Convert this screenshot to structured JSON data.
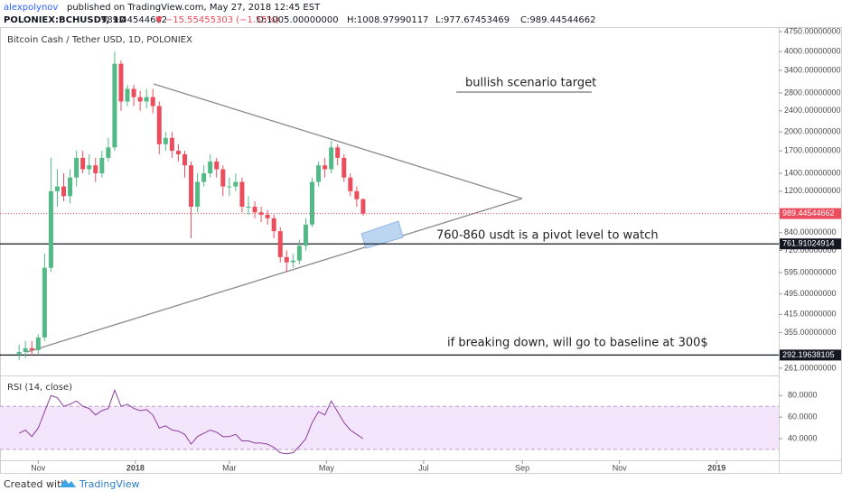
{
  "header": {
    "author": "alexpolynov",
    "published": "published on TradingView.com, May 27, 2018 12:45 EST",
    "symbol": "POLONIEX:BCHUSDT, 1D",
    "last": "989.44544662",
    "change": "▼ −15.55455303 (−1.55%)",
    "ohlc": [
      "O:1005.00000000",
      "H:1008.97990117",
      "L:977.67453469",
      "C:989.44544662"
    ]
  },
  "chart_data": {
    "type": "candlestick",
    "title": "Bitcoin Cash / Tether USD, 1D, POLONIEX",
    "log_scale": true,
    "up_color": "#53b987",
    "down_color": "#eb4d5c",
    "x": [
      "2017-10-20",
      "2017-10-24",
      "2017-10-28",
      "2017-11-01",
      "2017-11-05",
      "2017-11-09",
      "2017-11-13",
      "2017-11-17",
      "2017-11-21",
      "2017-11-25",
      "2017-11-29",
      "2017-12-03",
      "2017-12-07",
      "2017-12-11",
      "2017-12-15",
      "2017-12-19",
      "2017-12-23",
      "2017-12-27",
      "2017-12-31",
      "2018-01-04",
      "2018-01-08",
      "2018-01-12",
      "2018-01-16",
      "2018-01-20",
      "2018-01-24",
      "2018-01-28",
      "2018-02-01",
      "2018-02-05",
      "2018-02-09",
      "2018-02-13",
      "2018-02-17",
      "2018-02-21",
      "2018-02-25",
      "2018-03-01",
      "2018-03-05",
      "2018-03-09",
      "2018-03-13",
      "2018-03-17",
      "2018-03-21",
      "2018-03-25",
      "2018-03-29",
      "2018-04-02",
      "2018-04-06",
      "2018-04-10",
      "2018-04-14",
      "2018-04-18",
      "2018-04-22",
      "2018-04-26",
      "2018-04-30",
      "2018-05-04",
      "2018-05-08",
      "2018-05-12",
      "2018-05-16",
      "2018-05-20",
      "2018-05-24"
    ],
    "open": [
      295,
      300,
      310,
      305,
      340,
      620,
      1200,
      1250,
      1150,
      1350,
      1600,
      1450,
      1500,
      1400,
      1600,
      1750,
      3600,
      2600,
      2900,
      2700,
      2600,
      2700,
      2500,
      1800,
      1900,
      1700,
      1650,
      1500,
      1050,
      1300,
      1400,
      1550,
      1450,
      1250,
      1250,
      1300,
      1050,
      1050,
      1000,
      980,
      950,
      850,
      680,
      650,
      660,
      750,
      900,
      1300,
      1500,
      1450,
      1750,
      1600,
      1350,
      1200,
      1120
    ],
    "high": [
      320,
      330,
      330,
      350,
      700,
      1600,
      1450,
      1400,
      1450,
      1700,
      1700,
      1650,
      1600,
      1700,
      1900,
      4000,
      3700,
      3000,
      3000,
      2850,
      2900,
      2900,
      2600,
      2000,
      2000,
      1800,
      1700,
      1550,
      1400,
      1500,
      1650,
      1600,
      1500,
      1350,
      1400,
      1350,
      1150,
      1100,
      1050,
      1020,
      980,
      880,
      720,
      700,
      790,
      950,
      1350,
      1550,
      1600,
      1850,
      1800,
      1650,
      1400,
      1250,
      1130
    ],
    "low": [
      280,
      285,
      290,
      295,
      330,
      600,
      1050,
      1100,
      1080,
      1250,
      1400,
      1380,
      1300,
      1350,
      1550,
      1700,
      2400,
      2500,
      2500,
      2400,
      2450,
      2350,
      1650,
      1700,
      1600,
      1550,
      1350,
      800,
      1000,
      1250,
      1350,
      1350,
      1150,
      1150,
      1200,
      1000,
      980,
      950,
      920,
      900,
      800,
      650,
      600,
      620,
      640,
      720,
      880,
      1250,
      1350,
      1400,
      1500,
      1300,
      1150,
      1050,
      970
    ],
    "close": [
      300,
      310,
      305,
      340,
      620,
      1200,
      1250,
      1150,
      1350,
      1600,
      1450,
      1500,
      1400,
      1600,
      1750,
      3600,
      2600,
      2900,
      2700,
      2600,
      2700,
      2500,
      1800,
      1900,
      1700,
      1650,
      1500,
      1050,
      1300,
      1400,
      1550,
      1450,
      1250,
      1250,
      1300,
      1050,
      1050,
      1000,
      980,
      950,
      850,
      680,
      650,
      660,
      750,
      900,
      1300,
      1500,
      1450,
      1750,
      1600,
      1350,
      1200,
      1120,
      989.44544662
    ],
    "xlim": [
      "2017-10-08",
      "2019-02-09"
    ],
    "xticks": [
      {
        "value": "2017-11-01",
        "label": "Nov"
      },
      {
        "value": "2018-01-01",
        "label": "2018"
      },
      {
        "value": "2018-03-01",
        "label": "Mar"
      },
      {
        "value": "2018-05-01",
        "label": "May"
      },
      {
        "value": "2018-07-01",
        "label": "Jul"
      },
      {
        "value": "2018-09-01",
        "label": "Sep"
      },
      {
        "value": "2018-11-01",
        "label": "Nov"
      },
      {
        "value": "2019-01-01",
        "label": "2019"
      }
    ],
    "ylim": [
      247,
      4940
    ],
    "yticks": [
      {
        "value": 4750,
        "label": "4750.00000000"
      },
      {
        "value": 4000,
        "label": "4000.00000000"
      },
      {
        "value": 3400,
        "label": "3400.00000000"
      },
      {
        "value": 2800,
        "label": "2800.00000000"
      },
      {
        "value": 2400,
        "label": "2400.00000000"
      },
      {
        "value": 2000,
        "label": "2000.00000000"
      },
      {
        "value": 1700,
        "label": "1700.00000000"
      },
      {
        "value": 1400,
        "label": "1400.00000000"
      },
      {
        "value": 1200,
        "label": "1200.00000000"
      },
      {
        "value": 840,
        "label": "840.00000000"
      },
      {
        "value": 720,
        "label": "720.00000000"
      },
      {
        "value": 595,
        "label": "595.00000000"
      },
      {
        "value": 495,
        "label": "495.00000000"
      },
      {
        "value": 415,
        "label": "415.00000000"
      },
      {
        "value": 355,
        "label": "355.00000000"
      },
      {
        "value": 261,
        "label": "261.00000000"
      }
    ],
    "price_lines": [
      {
        "value": 989.44544662,
        "label": "989.44544662",
        "color": "#eb4d5c"
      },
      {
        "value": 761.91024914,
        "label": "761.91024914",
        "color": "#131722"
      },
      {
        "value": 292.19638105,
        "label": "292.19638105",
        "color": "#131722"
      }
    ],
    "annotations": [
      "bullish scenario target",
      "760-860 usdt is a pivot level to watch",
      "if breaking down, will go to baseline at 300$"
    ],
    "rsi": {
      "title": "RSI (14, close)",
      "color": "#8e3f9e",
      "values": [
        45,
        48,
        42,
        50,
        65,
        80,
        78,
        70,
        72,
        75,
        70,
        68,
        62,
        66,
        68,
        85,
        70,
        72,
        68,
        66,
        67,
        62,
        50,
        52,
        48,
        47,
        44,
        35,
        42,
        45,
        48,
        46,
        42,
        42,
        44,
        38,
        38,
        36,
        36,
        35,
        32,
        27,
        26,
        27,
        33,
        40,
        55,
        65,
        62,
        75,
        65,
        55,
        48,
        44,
        40
      ],
      "ylim": [
        20,
        97
      ],
      "yticks": [
        {
          "value": 80,
          "label": "80.0000"
        },
        {
          "value": 60,
          "label": "60.0000"
        },
        {
          "value": 40,
          "label": "40.0000"
        }
      ],
      "band": [
        30,
        70
      ]
    }
  },
  "footer": {
    "created": "Created with",
    "brand": "TradingView"
  }
}
